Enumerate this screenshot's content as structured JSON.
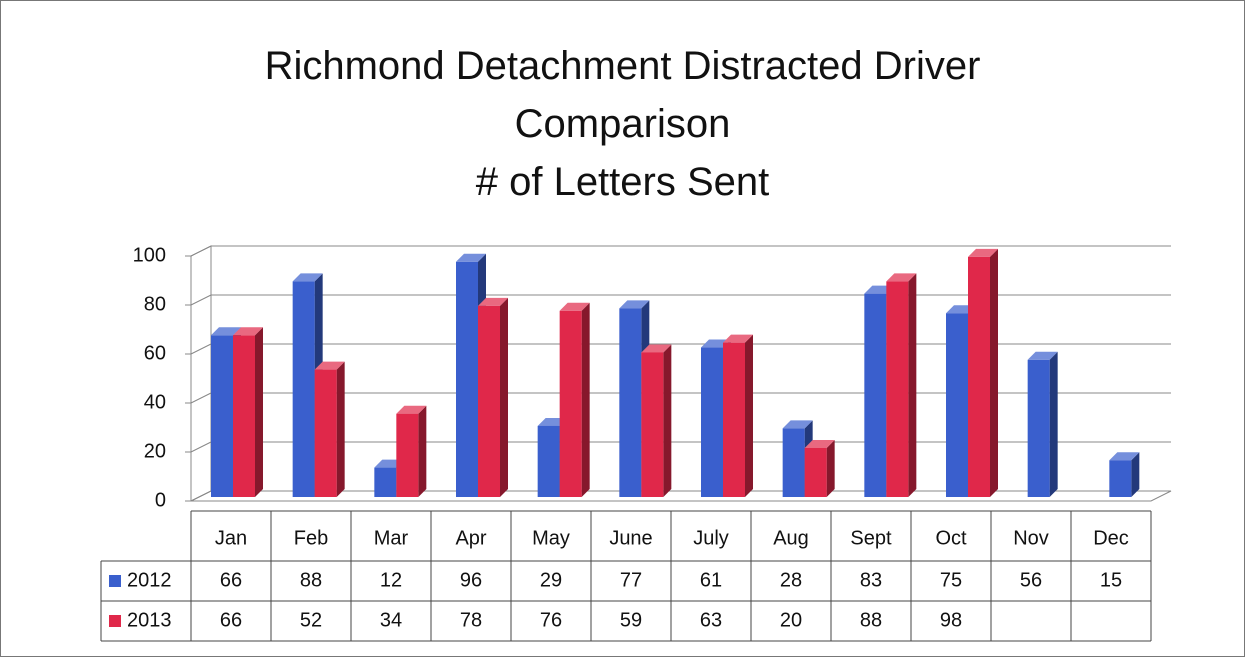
{
  "chart_data": {
    "type": "bar3d",
    "title": "Richmond Detachment Distracted Driver Comparison",
    "subtitle": "# of Letters Sent",
    "categories": [
      "Jan",
      "Feb",
      "Mar",
      "Apr",
      "May",
      "June",
      "July",
      "Aug",
      "Sept",
      "Oct",
      "Nov",
      "Dec"
    ],
    "series": [
      {
        "name": "2012",
        "color": "#3a5fcd",
        "values": [
          66,
          88,
          12,
          96,
          29,
          77,
          61,
          28,
          83,
          75,
          56,
          15
        ]
      },
      {
        "name": "2013",
        "color": "#e0284a",
        "values": [
          66,
          52,
          34,
          78,
          76,
          59,
          63,
          20,
          88,
          98,
          null,
          null
        ]
      }
    ],
    "ylim": [
      0,
      100
    ],
    "yticks": [
      0,
      20,
      40,
      60,
      80,
      100
    ],
    "grid": true,
    "data_table": true
  }
}
